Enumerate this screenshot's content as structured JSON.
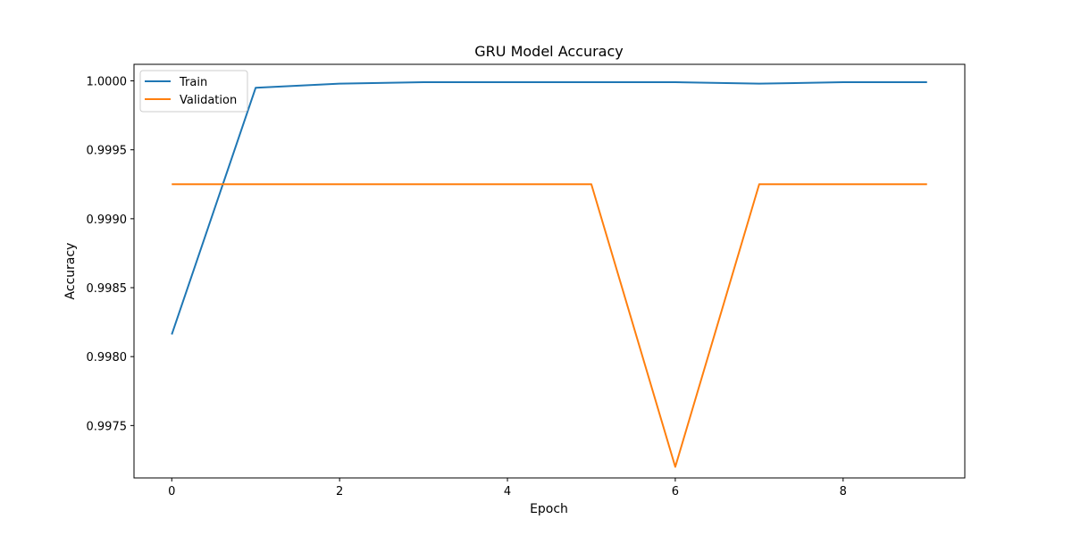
{
  "chart_data": {
    "type": "line",
    "title": "GRU Model Accuracy",
    "xlabel": "Epoch",
    "ylabel": "Accuracy",
    "xlim": [
      -0.45,
      9.45
    ],
    "ylim": [
      0.99712,
      1.00012
    ],
    "x": [
      0,
      1,
      2,
      3,
      4,
      5,
      6,
      7,
      8,
      9
    ],
    "xticks": [
      0,
      2,
      4,
      6,
      8
    ],
    "xtick_labels": [
      "0",
      "2",
      "4",
      "6",
      "8"
    ],
    "yticks": [
      0.9975,
      0.998,
      0.9985,
      0.999,
      0.9995,
      1.0
    ],
    "ytick_labels": [
      "0.9975",
      "0.9980",
      "0.9985",
      "0.9990",
      "0.9995",
      "1.0000"
    ],
    "grid": false,
    "legend_position": "top-left",
    "series": [
      {
        "name": "Train",
        "color": "#1f77b4",
        "values": [
          0.99816,
          0.99995,
          0.99998,
          0.99999,
          0.99999,
          0.99999,
          0.99999,
          0.99998,
          0.99999,
          0.99999
        ]
      },
      {
        "name": "Validation",
        "color": "#ff7f0e",
        "values": [
          0.99925,
          0.99925,
          0.99925,
          0.99925,
          0.99925,
          0.99925,
          0.9972,
          0.99925,
          0.99925,
          0.99925
        ]
      }
    ]
  }
}
